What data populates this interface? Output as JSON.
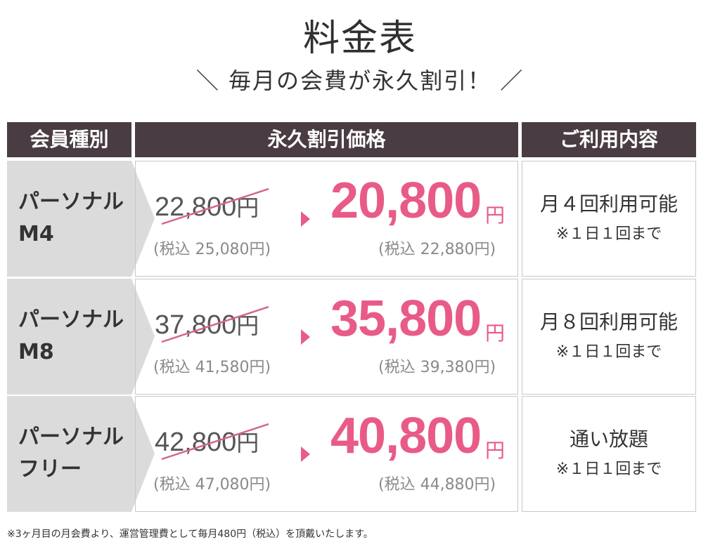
{
  "title": "料金表",
  "subtitle": "＼ 毎月の会費が永久割引！ ／",
  "headers": {
    "type": "会員種別",
    "price": "永久割引価格",
    "usage": "ご利用内容"
  },
  "plans": [
    {
      "name": "パーソナル\nM4",
      "old_price": "22,800",
      "old_yen": "円",
      "old_tax": "(税込 25,080円)",
      "new_price": "20,800",
      "new_yen": "円",
      "new_tax": "(税込 22,880円)",
      "usage": "月４回利用可能",
      "note": "※１日１回まで"
    },
    {
      "name": "パーソナル\nM8",
      "old_price": "37,800",
      "old_yen": "円",
      "old_tax": "(税込 41,580円)",
      "new_price": "35,800",
      "new_yen": "円",
      "new_tax": "(税込 39,380円)",
      "usage": "月８回利用可能",
      "note": "※１日１回まで"
    },
    {
      "name": "パーソナル\nフリー",
      "old_price": "42,800",
      "old_yen": "円",
      "old_tax": "(税込 47,080円)",
      "new_price": "40,800",
      "new_yen": "円",
      "new_tax": "(税込 44,880円)",
      "usage": "通い放題",
      "note": "※１日１回まで"
    }
  ],
  "footnote": "※3ヶ月目の月会費より、運営管理費として毎月480円（税込）を頂戴いたします。",
  "colors": {
    "header_bg": "#4a3c43",
    "accent": "#e95b87",
    "type_bg": "#dbdbdb"
  },
  "icons": {
    "arrow": "triangle-right-icon"
  }
}
